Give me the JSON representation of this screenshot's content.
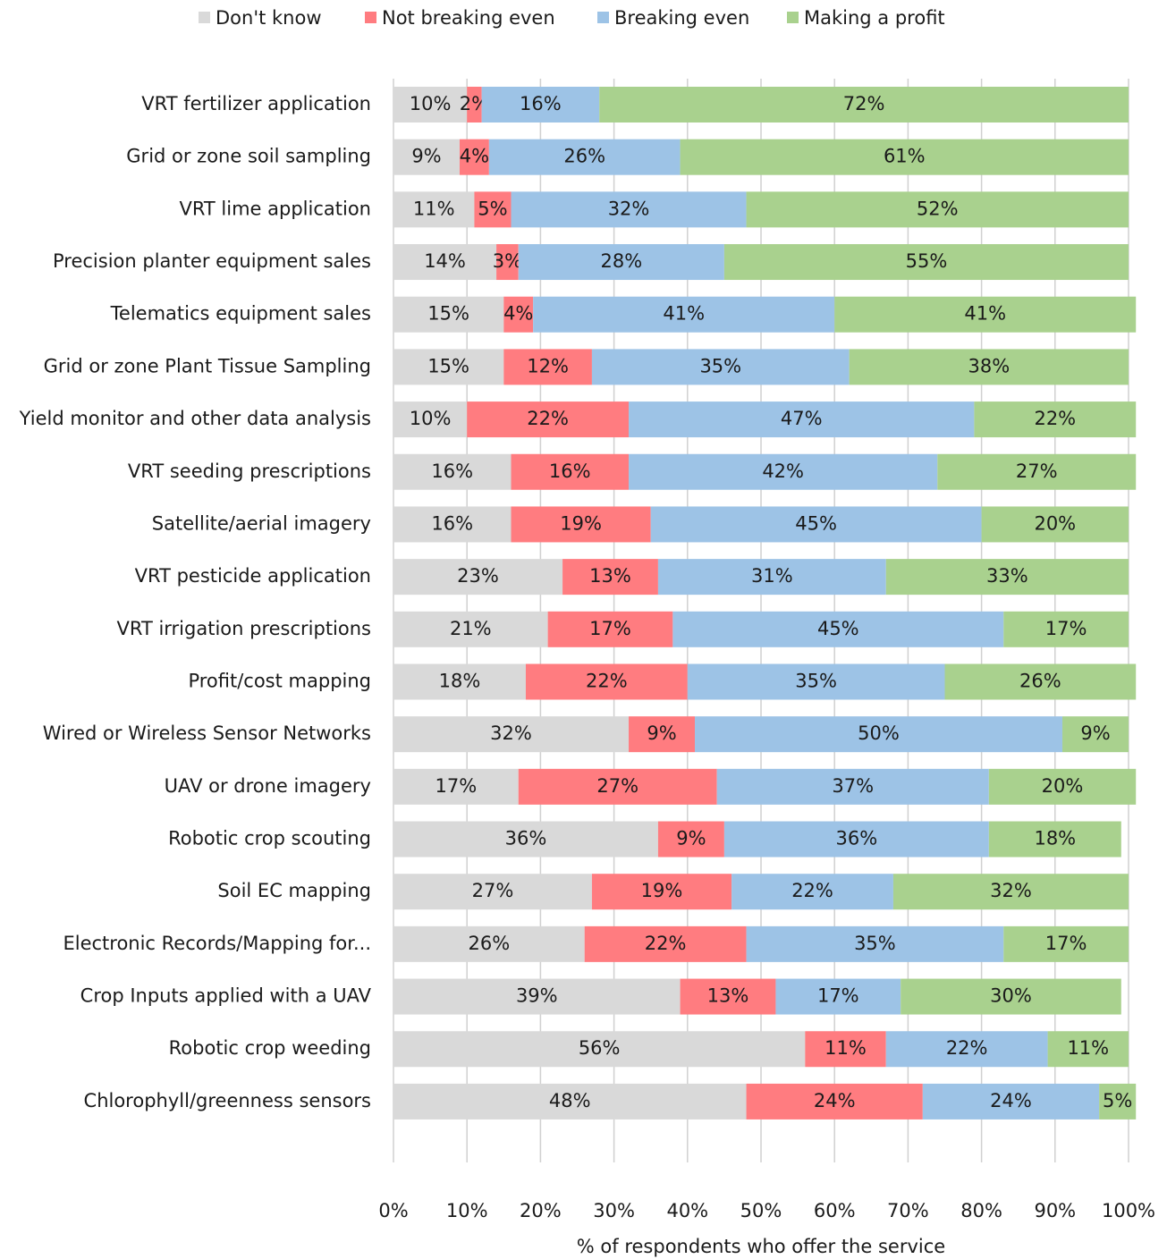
{
  "chart_data": {
    "type": "stacked_bar_horizontal",
    "xlabel": "% of respondents who offer the service",
    "categories": [
      "VRT fertilizer application",
      "Grid or zone soil sampling",
      "VRT lime application",
      "Precision planter equipment sales",
      "Telematics equipment sales",
      "Grid or zone Plant Tissue Sampling",
      "Yield monitor and other data analysis",
      "VRT seeding prescriptions",
      "Satellite/aerial imagery",
      "VRT pesticide application",
      "VRT irrigation prescriptions",
      "Profit/cost mapping",
      "Wired or Wireless Sensor Networks",
      "UAV or drone imagery",
      "Robotic crop scouting",
      "Soil EC mapping",
      "Electronic Records/Mapping for...",
      "Crop Inputs applied with a UAV",
      "Robotic crop weeding",
      "Chlorophyll/greenness sensors"
    ],
    "series": [
      {
        "name": "Don't know",
        "color": "#d9d9d9",
        "values": [
          10,
          9,
          11,
          14,
          15,
          15,
          10,
          16,
          16,
          23,
          21,
          18,
          32,
          17,
          36,
          27,
          26,
          39,
          56,
          48
        ],
        "value_labels": [
          "10%",
          "9%",
          "11%",
          "14%",
          "15%",
          "15%",
          "10%",
          "16%",
          "16%",
          "23%",
          "21%",
          "18%",
          "32%",
          "17%",
          "36%",
          "27%",
          "26%",
          "39%",
          "56%",
          "48%"
        ]
      },
      {
        "name": "Not breaking even",
        "color": "#ff7c80",
        "values": [
          2,
          4,
          5,
          3,
          4,
          12,
          22,
          16,
          19,
          13,
          17,
          22,
          9,
          27,
          9,
          19,
          22,
          13,
          11,
          24
        ],
        "value_labels": [
          "2%",
          "4%",
          "5%",
          "3%",
          "4%",
          "12%",
          "22%",
          "16%",
          "19%",
          "13%",
          "17%",
          "22%",
          "9%",
          "27%",
          "9%",
          "19%",
          "22%",
          "13%",
          "11%",
          "24%"
        ]
      },
      {
        "name": "Breaking even",
        "color": "#9dc3e6",
        "values": [
          16,
          26,
          32,
          28,
          41,
          35,
          47,
          42,
          45,
          31,
          45,
          35,
          50,
          37,
          36,
          22,
          35,
          17,
          22,
          24
        ],
        "value_labels": [
          "16%",
          "26%",
          "32%",
          "28%",
          "41%",
          "35%",
          "47%",
          "42%",
          "45%",
          "31%",
          "45%",
          "35%",
          "50%",
          "37%",
          "36%",
          "22%",
          "35%",
          "17%",
          "22%",
          "24%"
        ]
      },
      {
        "name": "Making a profit",
        "color": "#a9d18e",
        "values": [
          72,
          61,
          52,
          55,
          41,
          38,
          22,
          27,
          20,
          33,
          17,
          26,
          9,
          20,
          18,
          32,
          17,
          30,
          11,
          5
        ],
        "value_labels": [
          "72%",
          "61%",
          "52%",
          "55%",
          "41%",
          "38%",
          "22%",
          "27%",
          "20%",
          "33%",
          "17%",
          "26%",
          "9%",
          "20%",
          "18%",
          "32%",
          "17%",
          "30%",
          "11%",
          "5%"
        ]
      }
    ],
    "xlim": [
      0,
      100
    ],
    "xticks": [
      {
        "value": 0,
        "label": "0%"
      },
      {
        "value": 10,
        "label": "10%"
      },
      {
        "value": 20,
        "label": "20%"
      },
      {
        "value": 30,
        "label": "30%"
      },
      {
        "value": 40,
        "label": "40%"
      },
      {
        "value": 50,
        "label": "50%"
      },
      {
        "value": 60,
        "label": "60%"
      },
      {
        "value": 70,
        "label": "70%"
      },
      {
        "value": 80,
        "label": "80%"
      },
      {
        "value": 90,
        "label": "90%"
      },
      {
        "value": 100,
        "label": "100%"
      }
    ],
    "grid": true,
    "legend": "top"
  }
}
